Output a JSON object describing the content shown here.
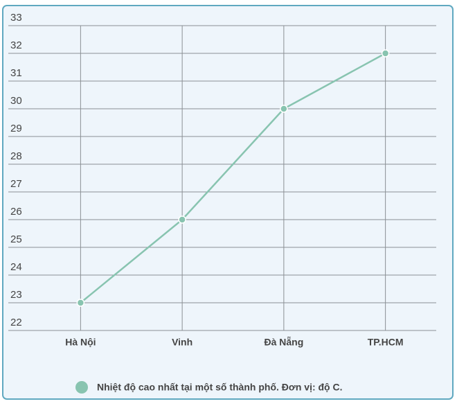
{
  "chart_data": {
    "type": "line",
    "categories": [
      "Hà Nội",
      "Vinh",
      "Đà Nẵng",
      "TP.HCM"
    ],
    "series": [
      {
        "name": "Nhiệt độ cao nhất tại một số thành phố. Đơn vị: độ C.",
        "color": "#88c4b0",
        "values": [
          23,
          26,
          30,
          32
        ]
      }
    ],
    "ylim": [
      22,
      33
    ],
    "yticks": [
      22,
      23,
      24,
      25,
      26,
      27,
      28,
      29,
      30,
      31,
      32,
      33
    ],
    "grid": true
  }
}
